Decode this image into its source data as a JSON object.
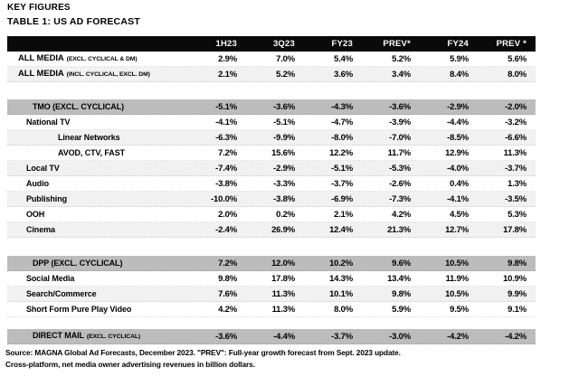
{
  "page": {
    "kicker": "KEY FIGURES",
    "title": "TABLE 1: US AD FORECAST"
  },
  "table": {
    "columns": [
      "1H23",
      "3Q23",
      "FY23",
      "PREV*",
      "FY24",
      "PREV *"
    ],
    "sections": [
      {
        "rows": [
          {
            "label": "ALL MEDIA",
            "sub": "(EXCL. CYCLICAL & DM)",
            "style": "main",
            "bg": "white",
            "values": [
              "2.9%",
              "7.0%",
              "5.4%",
              "5.2%",
              "5.9%",
              "5.6%"
            ]
          },
          {
            "label": "ALL MEDIA",
            "sub": "(INCL. CYCLICAL, EXCL. DM)",
            "style": "main",
            "bg": "light",
            "values": [
              "2.1%",
              "5.2%",
              "3.6%",
              "3.4%",
              "8.4%",
              "8.0%"
            ]
          }
        ]
      },
      {
        "rows": [
          {
            "label": "TMO (EXCL. CYCLICAL)",
            "style": "section",
            "bg": "gray",
            "values": [
              "-5.1%",
              "-3.6%",
              "-4.3%",
              "-3.6%",
              "-2.9%",
              "-2.0%"
            ]
          },
          {
            "label": "National TV",
            "style": "item",
            "bg": "white",
            "values": [
              "-4.1%",
              "-5.1%",
              "-4.7%",
              "-3.9%",
              "-4.4%",
              "-3.2%"
            ]
          },
          {
            "label": "Linear Networks",
            "style": "subitem",
            "bg": "light",
            "values": [
              "-6.3%",
              "-9.9%",
              "-8.0%",
              "-7.0%",
              "-8.5%",
              "-6.6%"
            ]
          },
          {
            "label": "AVOD, CTV, FAST",
            "style": "subitem",
            "bg": "white",
            "values": [
              "7.2%",
              "15.6%",
              "12.2%",
              "11.7%",
              "12.9%",
              "11.3%"
            ]
          },
          {
            "label": "Local TV",
            "style": "item",
            "bg": "light",
            "values": [
              "-7.4%",
              "-2.9%",
              "-5.1%",
              "-5.3%",
              "-4.0%",
              "-3.7%"
            ]
          },
          {
            "label": "Audio",
            "style": "item",
            "bg": "white",
            "values": [
              "-3.8%",
              "-3.3%",
              "-3.7%",
              "-2.6%",
              "0.4%",
              "1.3%"
            ]
          },
          {
            "label": "Publishing",
            "style": "item",
            "bg": "light",
            "values": [
              "-10.0%",
              "-3.8%",
              "-6.9%",
              "-7.3%",
              "-4.1%",
              "-3.5%"
            ]
          },
          {
            "label": "OOH",
            "style": "item",
            "bg": "white",
            "values": [
              "2.0%",
              "0.2%",
              "2.1%",
              "4.2%",
              "4.5%",
              "5.3%"
            ]
          },
          {
            "label": "Cinema",
            "style": "item",
            "bg": "light",
            "values": [
              "-2.4%",
              "26.9%",
              "12.4%",
              "21.3%",
              "12.7%",
              "17.8%"
            ]
          }
        ]
      },
      {
        "rows": [
          {
            "label": "DPP (EXCL. CYCLICAL)",
            "style": "section",
            "bg": "gray",
            "values": [
              "7.2%",
              "12.0%",
              "10.2%",
              "9.6%",
              "10.5%",
              "9.8%"
            ]
          },
          {
            "label": "Social Media",
            "style": "item",
            "bg": "white",
            "values": [
              "9.8%",
              "17.8%",
              "14.3%",
              "13.4%",
              "11.9%",
              "10.9%"
            ]
          },
          {
            "label": "Search/Commerce",
            "style": "item",
            "bg": "light",
            "values": [
              "7.6%",
              "11.3%",
              "10.1%",
              "9.8%",
              "10.5%",
              "9.9%"
            ]
          },
          {
            "label": "Short Form Pure Play Video",
            "style": "item",
            "bg": "white",
            "values": [
              "4.2%",
              "11.3%",
              "8.0%",
              "5.9%",
              "9.5%",
              "9.1%"
            ]
          }
        ]
      },
      {
        "rows": [
          {
            "label": "DIRECT MAIL",
            "sub": "(EXCL. CYCLICAL)",
            "style": "section",
            "bg": "gray",
            "values": [
              "-3.6%",
              "-4.4%",
              "-3.7%",
              "-3.0%",
              "-4.2%",
              "-4.2%"
            ]
          }
        ]
      }
    ]
  },
  "footer": {
    "line1": "Source: MAGNA Global Ad Forecasts, December 2023. \"PREV\": Full-year growth forecast from Sept. 2023 update.",
    "line2": "Cross-platform, net media owner advertising revenues in billion dollars."
  },
  "colors": {
    "header_bg": "#0a0a0a",
    "header_text": "#ffffff",
    "section_row_bg": "#bcbcbc",
    "stripe_bg": "#f1f1f1",
    "text": "#000000"
  }
}
